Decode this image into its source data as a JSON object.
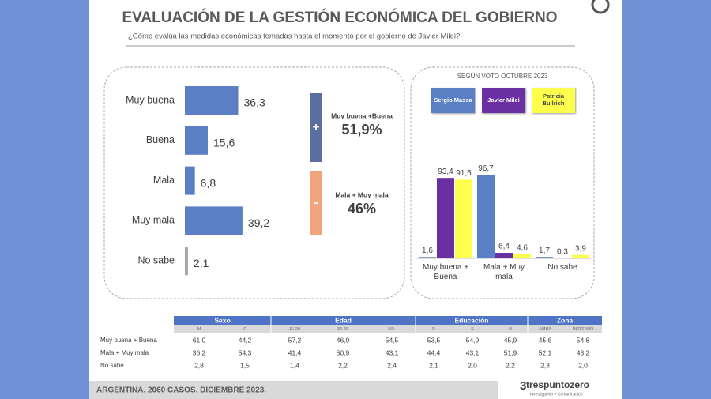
{
  "header": {
    "title": "EVALUACIÓN DE LA GESTIÓN ECONÓMICA DEL GOBIERNO",
    "subtitle": "¿Cómo evalúa las medidas económicas tomadas hasta el momento por el gobierno de Javier Milei?"
  },
  "chart_data": [
    {
      "type": "hbar",
      "categories": [
        "Muy buena",
        "Buena",
        "Mala",
        "Muy mala",
        "No sabe"
      ],
      "values": [
        36.3,
        15.6,
        6.8,
        39.2,
        2.1
      ],
      "value_labels": [
        "36,3",
        "15,6",
        "6,8",
        "39,2",
        "2,1"
      ],
      "colors": [
        "#5b7fc4",
        "#5b7fc4",
        "#5b7fc4",
        "#5b7fc4",
        "#a6a6a6"
      ],
      "xlim": [
        0,
        100
      ]
    },
    {
      "type": "grouped-bar",
      "title": "SEGÚN VOTO OCTUBRE 2023",
      "categories": [
        "Muy buena + Buena",
        "Mala + Muy mala",
        "No sabe"
      ],
      "series": [
        {
          "name": "Sergio Massa",
          "color": "#5b7fc4",
          "values": [
            1.6,
            96.7,
            1.7
          ],
          "value_labels": [
            "1,6",
            "96,7",
            "1,7"
          ]
        },
        {
          "name": "Javier Milei",
          "color": "#6a2fa3",
          "values": [
            93.4,
            6.4,
            0.3
          ],
          "value_labels": [
            "93,4",
            "6,4",
            "0,3"
          ]
        },
        {
          "name": "Patricia Bullrich",
          "color": "#ffff4d",
          "values": [
            91.5,
            4.6,
            3.9
          ],
          "value_labels": [
            "91,5",
            "4,6",
            "3,9"
          ]
        }
      ],
      "ylim": [
        0,
        100
      ]
    }
  ],
  "summary": [
    {
      "sign": "+",
      "label": "Muy buena +Buena",
      "value": "51,9%",
      "color": "#5a6e9f"
    },
    {
      "sign": "-",
      "label": "Mala + Muy mala",
      "value": "46%",
      "color": "#f2a57c"
    }
  ],
  "table": {
    "groups": [
      {
        "name": "Sexo",
        "columns": [
          "M",
          "F"
        ]
      },
      {
        "name": "Edad",
        "columns": [
          "16-29",
          "30-49",
          "50+"
        ]
      },
      {
        "name": "Educación",
        "columns": [
          "P",
          "S",
          "U"
        ]
      },
      {
        "name": "Zona",
        "columns": [
          "AMBA",
          "INTERIOR"
        ]
      }
    ],
    "rows": [
      {
        "label": "Muy buena + Buena",
        "cells": [
          "61,0",
          "44,2",
          "57,2",
          "46,9",
          "54,5",
          "53,5",
          "54,9",
          "45,9",
          "45,6",
          "54,8"
        ]
      },
      {
        "label": "Mala + Muy mala",
        "cells": [
          "36,2",
          "54,3",
          "41,4",
          "50,9",
          "43,1",
          "44,4",
          "43,1",
          "51,9",
          "52,1",
          "43,2"
        ]
      },
      {
        "label": "No sabe",
        "cells": [
          "2,8",
          "1,5",
          "1,4",
          "2,2",
          "2,4",
          "2,1",
          "2,0",
          "2,2",
          "2,3",
          "2,0"
        ]
      }
    ]
  },
  "footer": "ARGENTINA. 2060 CASOS. DICIEMBRE 2023.",
  "logo": {
    "name": "trespuntozero",
    "tagline": "Investigación + Comunicación"
  }
}
